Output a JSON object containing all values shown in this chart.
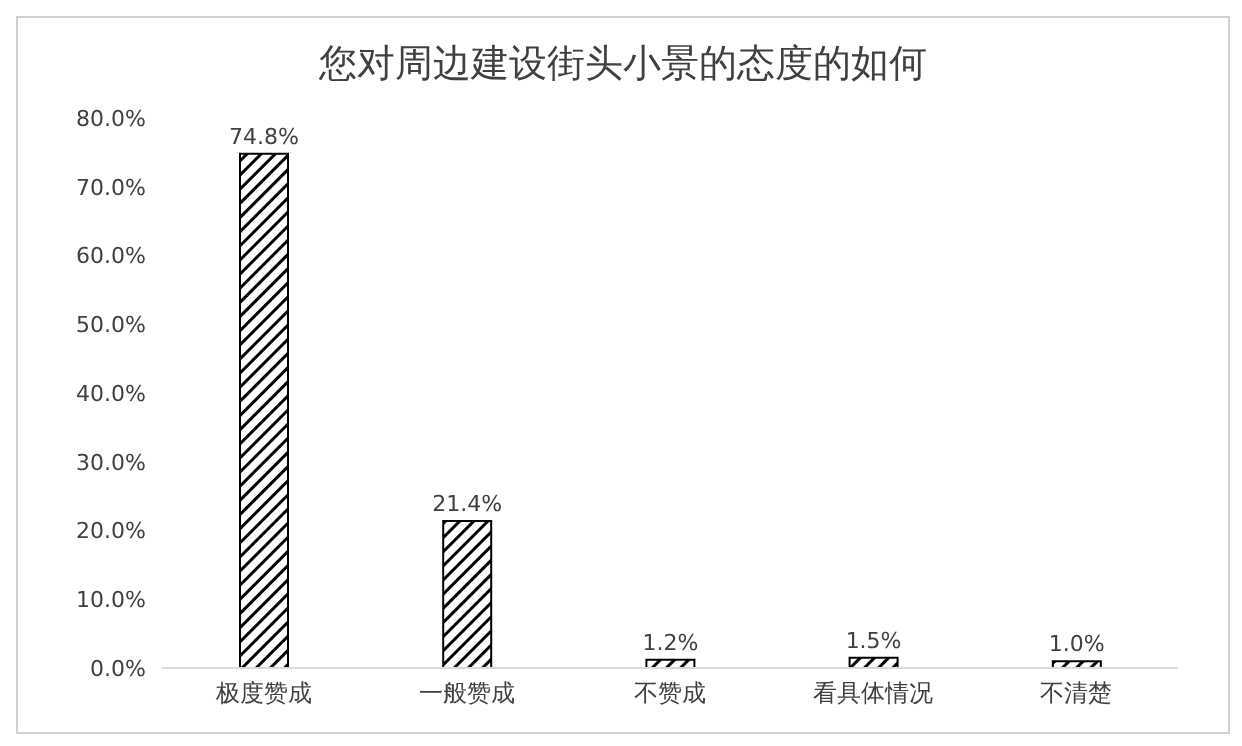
{
  "chart_data": {
    "type": "bar",
    "title": "您对周边建设街头小景的态度的如何",
    "categories": [
      "极度赞成",
      "一般赞成",
      "不赞成",
      "看具体情况",
      "不清楚"
    ],
    "values": [
      74.8,
      21.4,
      1.2,
      1.5,
      1.0
    ],
    "value_labels": [
      "74.8%",
      "21.4%",
      "1.2%",
      "1.5%",
      "1.0%"
    ],
    "color": "#000000",
    "ylim": [
      0,
      80
    ],
    "yticks": [
      {
        "value": 0,
        "label": "0.0%"
      },
      {
        "value": 10,
        "label": "10.0%"
      },
      {
        "value": 20,
        "label": "20.0%"
      },
      {
        "value": 30,
        "label": "30.0%"
      },
      {
        "value": 40,
        "label": "40.0%"
      },
      {
        "value": 50,
        "label": "50.0%"
      },
      {
        "value": 60,
        "label": "60.0%"
      },
      {
        "value": 70,
        "label": "70.0%"
      },
      {
        "value": 80,
        "label": "80.0%"
      }
    ],
    "grid": false,
    "legend": false
  }
}
